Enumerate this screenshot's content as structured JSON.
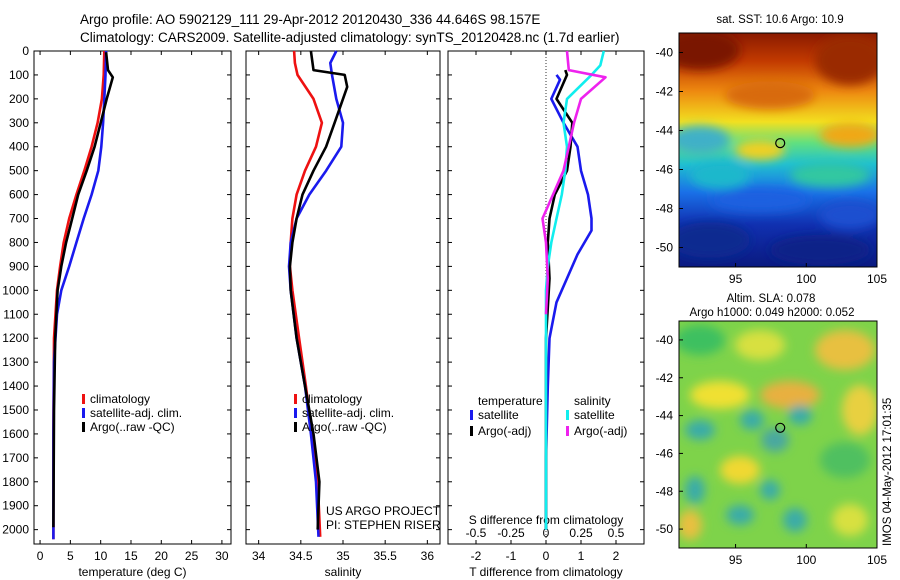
{
  "header": {
    "line1": "Argo profile: AO 5902129_111 29-Apr-2012 20120430_336 44.646S 98.157E",
    "line2": "Climatology: CARS2009. Satellite-adjusted climatology: synTS_20120428.nc (1.7d earlier)"
  },
  "colors": {
    "climatology": "#ee1111",
    "satellite": "#1a1aee",
    "argo": "#000000",
    "cyan": "#11eeee",
    "magenta": "#ee22ee"
  },
  "chart_data": [
    {
      "type": "line",
      "xlabel": "temperature (deg C)",
      "ylabel": "",
      "xlim": [
        -1,
        31.5
      ],
      "ylim": [
        2060,
        0
      ],
      "xticks": [
        "0",
        "5",
        "10",
        "15",
        "20",
        "25",
        "30"
      ],
      "xtick_values": [
        0,
        5,
        10,
        15,
        20,
        25,
        30
      ],
      "yticks": [
        "0",
        "100",
        "200",
        "300",
        "400",
        "500",
        "600",
        "700",
        "800",
        "900",
        "1000",
        "1100",
        "1200",
        "1300",
        "1400",
        "1500",
        "1600",
        "1700",
        "1800",
        "1900",
        "2000"
      ],
      "ytick_values": [
        0,
        100,
        200,
        300,
        400,
        500,
        600,
        700,
        800,
        900,
        1000,
        1100,
        1200,
        1300,
        1400,
        1500,
        1600,
        1700,
        1800,
        1900,
        2000
      ],
      "legend": [
        "climatology",
        "satellite-adj. clim.",
        "Argo(..raw -QC)"
      ],
      "series": [
        {
          "name": "climatology",
          "color_key": "climatology",
          "x": [
            10.6,
            10.5,
            10.2,
            9.5,
            8.5,
            7.3,
            6.0,
            4.8,
            3.9,
            3.3,
            2.8,
            2.3,
            2.2,
            2.2
          ],
          "y": [
            0,
            100,
            200,
            300,
            400,
            500,
            600,
            700,
            800,
            900,
            1000,
            1200,
            1600,
            2040
          ]
        },
        {
          "name": "satellite-adj. clim.",
          "color_key": "satellite",
          "x": [
            10.9,
            10.8,
            10.6,
            10.4,
            10.1,
            9.6,
            8.5,
            7.2,
            6.0,
            4.8,
            3.5,
            2.8,
            2.3,
            2.2,
            2.2
          ],
          "y": [
            0,
            100,
            200,
            300,
            400,
            500,
            600,
            700,
            800,
            900,
            1000,
            1100,
            1300,
            1600,
            2040
          ]
        },
        {
          "name": "Argo(..raw -QC)",
          "color_key": "argo",
          "x": [
            10.9,
            11.2,
            12.0,
            11.0,
            10.0,
            9.0,
            7.7,
            6.3,
            5.3,
            4.3,
            3.5,
            2.9,
            2.5,
            2.3,
            2.2
          ],
          "y": [
            5,
            80,
            110,
            200,
            300,
            400,
            500,
            600,
            700,
            800,
            900,
            1000,
            1200,
            1500,
            1990
          ]
        }
      ]
    },
    {
      "type": "line",
      "xlabel": "salinity",
      "ylabel": "",
      "xlim": [
        33.85,
        36.15
      ],
      "ylim": [
        2060,
        0
      ],
      "xticks": [
        "34",
        "34.5",
        "35",
        "35.5",
        "36"
      ],
      "xtick_values": [
        34,
        34.5,
        35,
        35.5,
        36
      ],
      "legend": [
        "climatology",
        "satellite-adj. clim.",
        "Argo(..raw -QC)"
      ],
      "annotations": [
        "US ARGO PROJECT",
        "PI: STEPHEN RISER"
      ],
      "series": [
        {
          "name": "climatology",
          "color_key": "climatology",
          "x": [
            34.42,
            34.43,
            34.46,
            34.65,
            34.75,
            34.68,
            34.55,
            34.45,
            34.4,
            34.38,
            34.37,
            34.4,
            34.48,
            34.56,
            34.63,
            34.7,
            34.73
          ],
          "y": [
            0,
            50,
            100,
            200,
            300,
            400,
            500,
            600,
            700,
            800,
            900,
            1000,
            1200,
            1400,
            1600,
            1800,
            2030
          ]
        },
        {
          "name": "satellite-adj. clim.",
          "color_key": "satellite",
          "x": [
            34.92,
            34.85,
            34.87,
            34.92,
            35.0,
            34.98,
            34.8,
            34.6,
            34.45,
            34.38,
            34.36,
            34.38,
            34.45,
            34.55,
            34.62,
            34.68,
            34.71
          ],
          "y": [
            0,
            50,
            100,
            200,
            300,
            400,
            500,
            600,
            700,
            800,
            900,
            1000,
            1200,
            1400,
            1600,
            1800,
            2030
          ]
        },
        {
          "name": "Argo(..raw -QC)",
          "color_key": "argo",
          "x": [
            34.62,
            34.65,
            35.02,
            35.05,
            34.9,
            34.8,
            34.65,
            34.52,
            34.45,
            34.4,
            34.37,
            34.38,
            34.45,
            34.55,
            34.65,
            34.72,
            34.7
          ],
          "y": [
            0,
            80,
            100,
            150,
            300,
            400,
            500,
            600,
            700,
            800,
            900,
            1000,
            1200,
            1400,
            1600,
            1800,
            2000
          ]
        }
      ]
    },
    {
      "type": "line",
      "xlabel": "T difference from climatology",
      "xlabel_top": "S difference from climatology",
      "xlim": [
        -2.8,
        2.8
      ],
      "ylim": [
        2060,
        0
      ],
      "xticks": [
        "-2",
        "-1",
        "0",
        "1",
        "2"
      ],
      "xtick_values": [
        -2,
        -1,
        0,
        1,
        2
      ],
      "xticks_top": [
        "-0.5",
        "-0.25",
        "0",
        "0.25",
        "0.5"
      ],
      "xtick_values_top": [
        -0.5,
        -0.25,
        0,
        0.25,
        0.5
      ],
      "legend_groups": [
        {
          "title": "temperature",
          "items": [
            "satellite",
            "Argo(-adj)"
          ]
        },
        {
          "title": "salinity",
          "items": [
            "satellite",
            "Argo(-adj)"
          ]
        }
      ],
      "series": [
        {
          "name": "temperature satellite",
          "color_key": "satellite",
          "x": [
            0.3,
            0.4,
            0.15,
            0.5,
            0.9,
            1.0,
            1.2,
            1.3,
            1.3,
            0.9,
            0.6,
            0.3,
            0.1,
            0.05,
            0.0,
            0.0
          ],
          "y": [
            100,
            120,
            200,
            300,
            400,
            500,
            600,
            700,
            750,
            850,
            950,
            1050,
            1200,
            1400,
            1700,
            2000
          ]
        },
        {
          "name": "temperature Argo(-adj)",
          "color_key": "argo",
          "x": [
            0.55,
            0.6,
            0.3,
            0.75,
            0.7,
            0.6,
            0.25,
            0.1,
            0.05,
            0.1,
            0.0,
            0.0
          ],
          "y": [
            80,
            100,
            200,
            300,
            400,
            500,
            600,
            700,
            800,
            950,
            1200,
            2000
          ]
        },
        {
          "name": "salinity satellite",
          "color_key": "cyan",
          "x": [
            1.65,
            1.55,
            1.3,
            0.6,
            0.5,
            0.6,
            0.55,
            0.45,
            0.3,
            0.15,
            0.05,
            0.0,
            0.0,
            0.0
          ],
          "y": [
            0,
            60,
            100,
            200,
            300,
            400,
            500,
            600,
            700,
            800,
            900,
            1000,
            1500,
            2000
          ]
        },
        {
          "name": "salinity Argo(-adj)",
          "color_key": "magenta",
          "x": [
            0.6,
            0.65,
            1.7,
            1.0,
            0.8,
            0.65,
            0.5,
            0.2,
            -0.1,
            0.0,
            0.05,
            0.0
          ],
          "y": [
            0,
            80,
            110,
            200,
            300,
            400,
            500,
            600,
            700,
            800,
            950,
            1100
          ]
        }
      ]
    },
    {
      "type": "heatmap",
      "title": "sat. SST: 10.6  Argo: 10.9",
      "xlim": [
        91,
        105
      ],
      "ylim": [
        -51,
        -39
      ],
      "xticks": [
        "95",
        "100",
        "105"
      ],
      "xtick_values": [
        95,
        100,
        105
      ],
      "yticks": [
        "-40",
        "-42",
        "-44",
        "-46",
        "-48",
        "-50"
      ],
      "ytick_values": [
        -40,
        -42,
        -44,
        -46,
        -48,
        -50
      ],
      "marker": {
        "lon": 98.157,
        "lat": -44.646
      }
    },
    {
      "type": "heatmap",
      "title": "Altim. SLA: 0.078",
      "subtitle": "Argo h1000: 0.049 h2000: 0.052",
      "xlim": [
        91,
        105
      ],
      "ylim": [
        -51,
        -39
      ],
      "xticks": [
        "95",
        "100",
        "105"
      ],
      "xtick_values": [
        95,
        100,
        105
      ],
      "yticks": [
        "-40",
        "-42",
        "-44",
        "-46",
        "-48",
        "-50"
      ],
      "ytick_values": [
        -40,
        -42,
        -44,
        -46,
        -48,
        -50
      ],
      "marker": {
        "lon": 98.157,
        "lat": -44.646
      }
    }
  ],
  "side_text": "IMOS 04-May-2012 17:01:35"
}
